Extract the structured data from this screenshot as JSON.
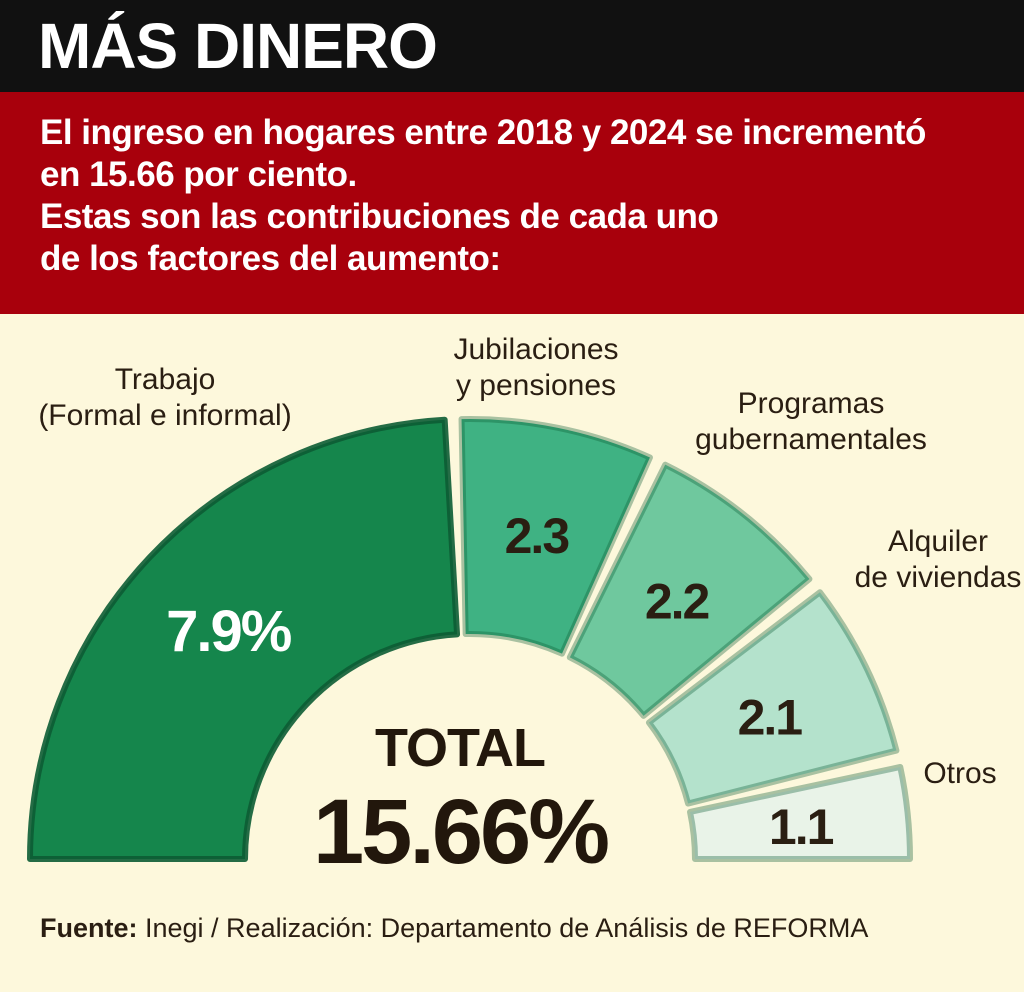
{
  "header": {
    "title": "MÁS DINERO",
    "subtitle_lines": [
      "El ingreso en hogares entre 2018 y 2024 se incrementó",
      "en 15.66 por ciento.",
      "Estas son las contribuciones de cada uno",
      "de los factores del aumento:"
    ]
  },
  "chart_data": {
    "type": "pie",
    "subtype": "semicircle-donut",
    "title": "MÁS DINERO",
    "categories": [
      "Trabajo (Formal e informal)",
      "Jubilaciones y pensiones",
      "Programas gubernamentales",
      "Alquiler de viviendas",
      "Otros"
    ],
    "values": [
      7.9,
      2.3,
      2.2,
      2.1,
      1.1
    ],
    "data_labels": [
      "7.9%",
      "2.3",
      "2.2",
      "2.1",
      "1.1"
    ],
    "category_label_lines": [
      [
        "Trabajo",
        "(Formal e informal)"
      ],
      [
        "Jubilaciones",
        "y pensiones"
      ],
      [
        "Programas",
        "gubernamentales"
      ],
      [
        "Alquiler",
        "de viviendas"
      ],
      [
        "Otros"
      ]
    ],
    "colors": [
      "#15864c",
      "#3fb283",
      "#6fc89e",
      "#b4e2cc",
      "#e9f3e8"
    ],
    "label_colors": [
      "#ffffff",
      "#2a1e12",
      "#2a1e12",
      "#2a1e12",
      "#2a1e12"
    ],
    "total": {
      "label": "TOTAL",
      "value": "15.66%"
    }
  },
  "footer": {
    "source_label": "Fuente:",
    "source_text": " Inegi / Realización: Departamento de Análisis de REFORMA"
  },
  "colors": {
    "background": "#fdf8dc",
    "title_bar": "#111111",
    "subtitle_bar": "#a8000c"
  }
}
